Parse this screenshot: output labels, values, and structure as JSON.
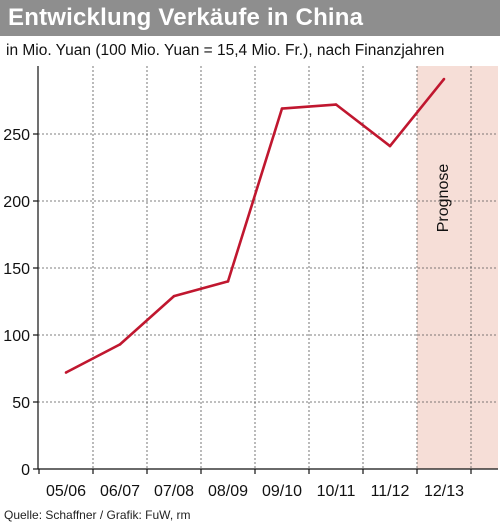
{
  "header": {
    "title": "Entwicklung Verkäufe in China",
    "subtitle": "in Mio. Yuan (100 Mio. Yuan = 15,4 Mio. Fr.), nach Finanzjahren"
  },
  "footer": {
    "source": "Quelle: Schaffner / Grafik: FuW, rm"
  },
  "colors": {
    "line": "#c0172f",
    "forecast_band": "#f6ded7",
    "title_bar": "#8e8e8e",
    "grid": "#555555"
  },
  "chart_data": {
    "type": "line",
    "title": "Entwicklung Verkäufe in China",
    "subtitle": "in Mio. Yuan (100 Mio. Yuan = 15,4 Mio. Fr.), nach Finanzjahren",
    "xlabel": "",
    "ylabel": "",
    "categories": [
      "05/06",
      "06/07",
      "07/08",
      "08/09",
      "09/10",
      "10/11",
      "11/12",
      "12/13"
    ],
    "series": [
      {
        "name": "",
        "values": [
          72,
          93,
          129,
          140,
          269,
          272,
          241,
          291
        ]
      }
    ],
    "yticks": [
      0,
      50,
      100,
      150,
      200,
      250
    ],
    "ylim": [
      0,
      295
    ],
    "grid": true,
    "forecast": {
      "category": "12/13",
      "label": "Prognose"
    }
  }
}
